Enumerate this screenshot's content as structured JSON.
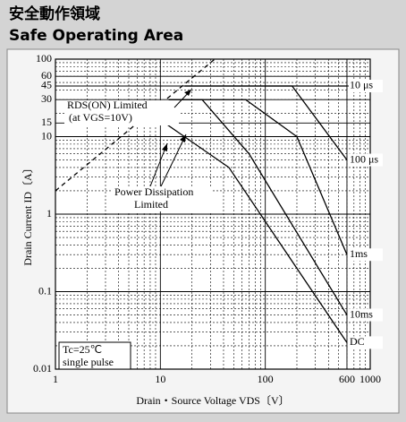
{
  "chart_data": {
    "type": "line",
    "title": "安全動作領域",
    "subtitle": "Safe Operating Area",
    "x_label": "Drain・Source Voltage  VDS〔V〕",
    "y_label": "Drain Current  ID〔A〕",
    "log_x": true,
    "log_y": true,
    "grid": true,
    "xlim": [
      1,
      1000
    ],
    "ylim": [
      0.01,
      100
    ],
    "xticks": [
      1,
      10,
      100,
      600,
      1000
    ],
    "yticks": [
      0.01,
      0.1,
      1,
      10,
      15,
      30,
      45,
      60,
      100
    ],
    "series": [
      {
        "name": "10 μs",
        "color": "#000000",
        "x": [
          17,
          600
        ],
        "values": [
          45,
          45
        ]
      },
      {
        "name": "100 μs",
        "color": "#000000",
        "x": [
          17,
          180,
          600
        ],
        "values": [
          45,
          45,
          5
        ]
      },
      {
        "name": "1ms",
        "color": "#000000",
        "x": [
          12,
          65,
          200,
          600
        ],
        "values": [
          30,
          30,
          10,
          0.3
        ]
      },
      {
        "name": "10ms",
        "color": "#000000",
        "x": [
          12,
          25,
          70,
          600
        ],
        "values": [
          30,
          30,
          6,
          0.05
        ]
      },
      {
        "name": "DC",
        "color": "#000000",
        "x": [
          6.5,
          11,
          45,
          600
        ],
        "values": [
          15,
          15,
          4,
          0.022
        ]
      },
      {
        "color": "#000000",
        "dashed": true,
        "x": [
          1,
          33
        ],
        "values": [
          2,
          100
        ]
      }
    ],
    "annotations": {
      "rds": "RDS(ON) Limited",
      "rds_cond": "(at VGS=10V)",
      "power": "Power Dissipation",
      "power2": "Limited",
      "tc": "Tc=25℃",
      "pulse": "single pulse"
    }
  }
}
